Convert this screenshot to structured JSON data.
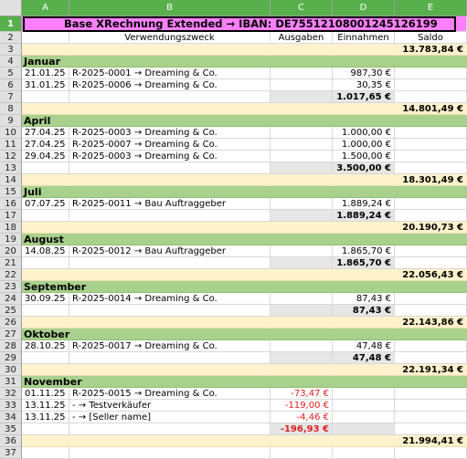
{
  "columns": [
    "A",
    "B",
    "C",
    "D",
    "E"
  ],
  "colors": {
    "title_bg": "#ff80ff",
    "month_bg": "#a9d18e",
    "saldo_bg": "#fff2cc",
    "sum_bg": "#e6e6e6",
    "negative": "#e02020",
    "selected_header": "#57b04b"
  },
  "title": "Base XRechnung Extended → IBAN: DE75512108001245126199",
  "headers": {
    "b": "Verwendungszweck",
    "c": "Ausgaben",
    "d": "Einnahmen",
    "e": "Saldo"
  },
  "rows": [
    {
      "n": "3",
      "type": "saldo",
      "e": "13.783,84 €"
    },
    {
      "n": "4",
      "type": "month",
      "label": "Januar"
    },
    {
      "n": "5",
      "type": "entry",
      "a": "21.01.25",
      "b": "R-2025-0001 → Dreaming & Co.",
      "c": "",
      "d": "987,30 €"
    },
    {
      "n": "6",
      "type": "entry",
      "a": "31.01.25",
      "b": "R-2025-0006 → Dreaming & Co.",
      "c": "",
      "d": "30,35 €"
    },
    {
      "n": "7",
      "type": "sum",
      "c": "",
      "d": "1.017,65 €"
    },
    {
      "n": "8",
      "type": "saldo",
      "e": "14.801,49 €"
    },
    {
      "n": "9",
      "type": "month",
      "label": "April"
    },
    {
      "n": "10",
      "type": "entry",
      "a": "27.04.25",
      "b": "R-2025-0003 → Dreaming & Co.",
      "c": "",
      "d": "1.000,00 €"
    },
    {
      "n": "11",
      "type": "entry",
      "a": "27.04.25",
      "b": "R-2025-0007 → Dreaming & Co.",
      "c": "",
      "d": "1.000,00 €"
    },
    {
      "n": "12",
      "type": "entry",
      "a": "29.04.25",
      "b": "R-2025-0003 → Dreaming & Co.",
      "c": "",
      "d": "1.500,00 €"
    },
    {
      "n": "13",
      "type": "sum",
      "c": "",
      "d": "3.500,00 €"
    },
    {
      "n": "14",
      "type": "saldo",
      "e": "18.301,49 €"
    },
    {
      "n": "15",
      "type": "month",
      "label": "Juli"
    },
    {
      "n": "16",
      "type": "entry",
      "a": "07.07.25",
      "b": "R-2025-0011 → Bau Auftraggeber",
      "c": "",
      "d": "1.889,24 €"
    },
    {
      "n": "17",
      "type": "sum",
      "c": "",
      "d": "1.889,24 €"
    },
    {
      "n": "18",
      "type": "saldo",
      "e": "20.190,73 €"
    },
    {
      "n": "19",
      "type": "month",
      "label": "August"
    },
    {
      "n": "20",
      "type": "entry",
      "a": "14.08.25",
      "b": "R-2025-0012 → Bau Auftraggeber",
      "c": "",
      "d": "1.865,70 €"
    },
    {
      "n": "21",
      "type": "sum",
      "c": "",
      "d": "1.865,70 €"
    },
    {
      "n": "22",
      "type": "saldo",
      "e": "22.056,43 €"
    },
    {
      "n": "23",
      "type": "month",
      "label": "September"
    },
    {
      "n": "24",
      "type": "entry",
      "a": "30.09.25",
      "b": "R-2025-0014 → Dreaming & Co.",
      "c": "",
      "d": "87,43 €"
    },
    {
      "n": "25",
      "type": "sum",
      "c": "",
      "d": "87,43 €"
    },
    {
      "n": "26",
      "type": "saldo",
      "e": "22.143,86 €"
    },
    {
      "n": "27",
      "type": "month",
      "label": "Oktober"
    },
    {
      "n": "28",
      "type": "entry",
      "a": "28.10.25",
      "b": "R-2025-0017 → Dreaming & Co.",
      "c": "",
      "d": "47,48 €"
    },
    {
      "n": "29",
      "type": "sum",
      "c": "",
      "d": "47,48 €"
    },
    {
      "n": "30",
      "type": "saldo",
      "e": "22.191,34 €"
    },
    {
      "n": "31",
      "type": "month",
      "label": "November"
    },
    {
      "n": "32",
      "type": "entry",
      "a": "01.11.25",
      "b": "R-2025-0015 → Dreaming & Co.",
      "c": "-73,47 €",
      "d": ""
    },
    {
      "n": "33",
      "type": "entry",
      "a": "13.11.25",
      "b": "- → Testverkäufer",
      "c": "-119,00 €",
      "d": ""
    },
    {
      "n": "34",
      "type": "entry",
      "a": "13.11.25",
      "b": "- → [Seller name]",
      "c": "-4,46 €",
      "d": ""
    },
    {
      "n": "35",
      "type": "sum",
      "c": "-196,93 €",
      "d": ""
    },
    {
      "n": "36",
      "type": "saldo",
      "e": "21.994,41 €"
    },
    {
      "n": "37",
      "type": "empty"
    }
  ]
}
